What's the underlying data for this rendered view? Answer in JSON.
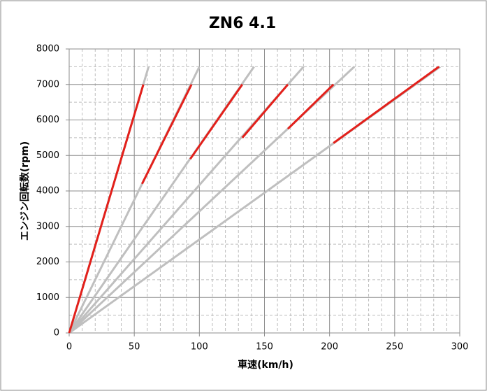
{
  "chart_data": {
    "type": "line",
    "title": "ZN6 4.1",
    "x_label": "車速(km/h)",
    "y_label": "エンジン回転数(rpm)",
    "xlim": [
      0,
      300
    ],
    "xticks": [
      0,
      50,
      100,
      150,
      200,
      250,
      300
    ],
    "ylim": [
      0,
      8000
    ],
    "yticks": [
      0,
      1000,
      2000,
      3000,
      4000,
      5000,
      6000,
      7000,
      8000
    ],
    "xminorticks": [
      10,
      20,
      30,
      40,
      60,
      70,
      80,
      90,
      110,
      120,
      130,
      140,
      160,
      170,
      180,
      190,
      210,
      220,
      230,
      240,
      260,
      270,
      280,
      290
    ],
    "yminorticks": [
      500,
      1500,
      2500,
      3500,
      4500,
      5500,
      6500,
      7500
    ],
    "grid": true,
    "series": [
      {
        "color": "#bfbfbf",
        "x": [
          0,
          61
        ],
        "values": [
          0,
          7500
        ]
      },
      {
        "color": "#bfbfbf",
        "x": [
          0,
          100
        ],
        "values": [
          0,
          7500
        ]
      },
      {
        "color": "#bfbfbf",
        "x": [
          0,
          142
        ],
        "values": [
          0,
          7500
        ]
      },
      {
        "color": "#bfbfbf",
        "x": [
          0,
          180
        ],
        "values": [
          0,
          7500
        ]
      },
      {
        "color": "#bfbfbf",
        "x": [
          0,
          219
        ],
        "values": [
          0,
          7500
        ]
      },
      {
        "color": "#bfbfbf",
        "x": [
          0,
          285
        ],
        "values": [
          0,
          7500
        ]
      },
      {
        "color": "#e3201b",
        "x": [
          0,
          57
        ],
        "values": [
          0,
          7000
        ]
      },
      {
        "color": "#e3201b",
        "x": [
          56,
          94
        ],
        "values": [
          4200,
          7000
        ]
      },
      {
        "color": "#e3201b",
        "x": [
          93,
          133
        ],
        "values": [
          4900,
          7000
        ]
      },
      {
        "color": "#e3201b",
        "x": [
          133,
          168
        ],
        "values": [
          5500,
          7000
        ]
      },
      {
        "color": "#e3201b",
        "x": [
          168,
          203
        ],
        "values": [
          5750,
          7000
        ]
      },
      {
        "color": "#e3201b",
        "x": [
          203,
          284
        ],
        "values": [
          5350,
          7500
        ]
      }
    ]
  }
}
